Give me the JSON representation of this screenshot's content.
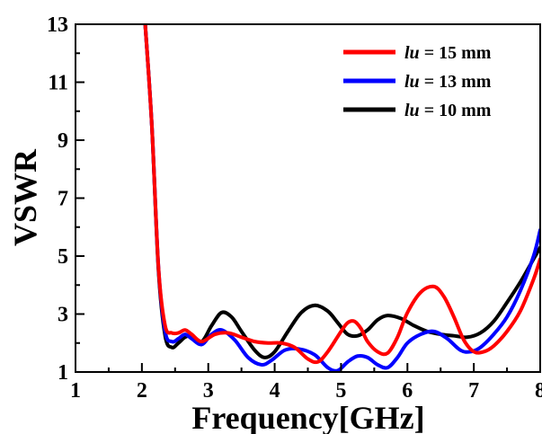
{
  "chart_data": {
    "type": "line",
    "xlabel": "Frequency[GHz]",
    "ylabel": "VSWR",
    "xlim": [
      1,
      8
    ],
    "ylim": [
      1,
      13
    ],
    "xticks": [
      1,
      2,
      3,
      4,
      5,
      6,
      7,
      8
    ],
    "yticks": [
      1,
      3,
      5,
      7,
      9,
      11,
      13
    ],
    "x_tick_labels": [
      "1",
      "2",
      "3",
      "4",
      "5",
      "6",
      "7",
      "8"
    ],
    "y_tick_labels": [
      "1",
      "3",
      "5",
      "7",
      "9",
      "11",
      "13"
    ],
    "grid": false,
    "legend_position": "top-right",
    "series": [
      {
        "name_var": "lu",
        "name_rest": " = 15 mm",
        "color": "#ff0000",
        "x": [
          2.05,
          2.15,
          2.25,
          2.35,
          2.45,
          2.55,
          2.65,
          2.75,
          2.9,
          3.1,
          3.3,
          3.5,
          3.7,
          3.9,
          4.1,
          4.3,
          4.5,
          4.65,
          4.8,
          5.0,
          5.1,
          5.2,
          5.3,
          5.4,
          5.55,
          5.7,
          5.85,
          6.0,
          6.2,
          6.4,
          6.55,
          6.7,
          6.85,
          7.0,
          7.15,
          7.3,
          7.5,
          7.7,
          7.9,
          8.0
        ],
        "y": [
          13.0,
          9.5,
          4.6,
          2.6,
          2.35,
          2.35,
          2.45,
          2.3,
          2.05,
          2.3,
          2.35,
          2.2,
          2.05,
          2.0,
          2.0,
          1.85,
          1.45,
          1.35,
          1.7,
          2.4,
          2.7,
          2.75,
          2.5,
          2.05,
          1.7,
          1.65,
          2.2,
          3.05,
          3.75,
          3.95,
          3.6,
          2.9,
          2.1,
          1.7,
          1.7,
          1.9,
          2.4,
          3.1,
          4.2,
          4.9
        ]
      },
      {
        "name_var": "lu",
        "name_rest": " = 13 mm",
        "color": "#0000ff",
        "x": [
          2.05,
          2.15,
          2.25,
          2.35,
          2.45,
          2.55,
          2.65,
          2.75,
          2.9,
          3.05,
          3.2,
          3.4,
          3.6,
          3.8,
          3.95,
          4.15,
          4.35,
          4.6,
          4.8,
          4.95,
          5.1,
          5.25,
          5.4,
          5.55,
          5.7,
          5.85,
          6.0,
          6.2,
          6.4,
          6.6,
          6.8,
          6.95,
          7.1,
          7.3,
          7.5,
          7.7,
          7.9,
          8.0
        ],
        "y": [
          13.0,
          9.5,
          4.6,
          2.4,
          2.05,
          2.15,
          2.3,
          2.15,
          1.95,
          2.3,
          2.45,
          2.1,
          1.5,
          1.25,
          1.4,
          1.75,
          1.8,
          1.6,
          1.15,
          1.05,
          1.35,
          1.55,
          1.5,
          1.25,
          1.15,
          1.5,
          2.0,
          2.3,
          2.4,
          2.15,
          1.75,
          1.7,
          1.85,
          2.3,
          2.9,
          3.8,
          5.0,
          5.9
        ]
      },
      {
        "name_var": "lu",
        "name_rest": " = 10 mm",
        "color": "#000000",
        "x": [
          2.05,
          2.15,
          2.25,
          2.35,
          2.45,
          2.55,
          2.65,
          2.75,
          2.9,
          3.05,
          3.2,
          3.35,
          3.5,
          3.7,
          3.85,
          4.0,
          4.2,
          4.4,
          4.6,
          4.8,
          4.95,
          5.1,
          5.25,
          5.4,
          5.55,
          5.7,
          5.9,
          6.1,
          6.3,
          6.5,
          6.7,
          6.9,
          7.1,
          7.3,
          7.5,
          7.7,
          7.9,
          8.0
        ],
        "y": [
          13.0,
          9.5,
          4.5,
          2.25,
          1.85,
          2.0,
          2.2,
          2.25,
          2.05,
          2.6,
          3.05,
          2.9,
          2.4,
          1.75,
          1.5,
          1.7,
          2.4,
          3.05,
          3.3,
          3.1,
          2.7,
          2.3,
          2.25,
          2.45,
          2.8,
          2.95,
          2.85,
          2.6,
          2.4,
          2.3,
          2.25,
          2.2,
          2.35,
          2.75,
          3.4,
          4.1,
          4.9,
          5.3
        ]
      }
    ]
  }
}
